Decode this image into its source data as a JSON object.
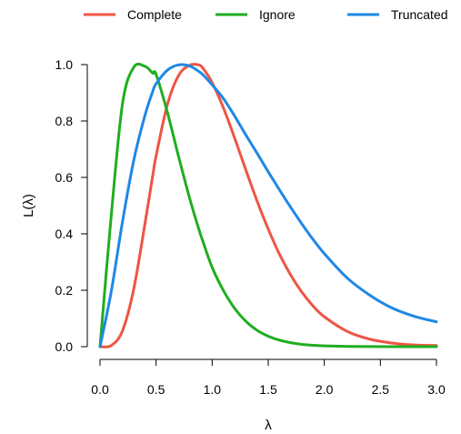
{
  "chart_data": {
    "type": "line",
    "xlabel": "λ",
    "ylabel": "L(λ)",
    "xlim": [
      0,
      3
    ],
    "ylim": [
      0,
      1
    ],
    "x_ticks": [
      "0.0",
      "0.5",
      "1.0",
      "1.5",
      "2.0",
      "2.5",
      "3.0"
    ],
    "y_ticks": [
      "0.0",
      "0.2",
      "0.4",
      "0.6",
      "0.8",
      "1.0"
    ],
    "grid": false,
    "legend_position": "top",
    "x": [
      0.0,
      0.1,
      0.2,
      0.3,
      0.4,
      0.47,
      0.5,
      0.6,
      0.7,
      0.8,
      0.88,
      0.92,
      1.0,
      1.1,
      1.2,
      1.3,
      1.4,
      1.5,
      1.6,
      1.7,
      1.8,
      1.9,
      2.0,
      2.2,
      2.4,
      2.6,
      2.8,
      3.0
    ],
    "series": [
      {
        "name": "Complete",
        "color": "#ee5544",
        "values": [
          0.0,
          0.004,
          0.056,
          0.203,
          0.434,
          0.606,
          0.676,
          0.857,
          0.961,
          0.998,
          0.999,
          0.986,
          0.936,
          0.847,
          0.74,
          0.627,
          0.517,
          0.417,
          0.328,
          0.254,
          0.193,
          0.144,
          0.106,
          0.055,
          0.027,
          0.013,
          0.006,
          0.004
        ]
      },
      {
        "name": "Ignore",
        "color": "#1fae1f",
        "values": [
          0.0,
          0.464,
          0.86,
          0.99,
          0.994,
          0.97,
          0.965,
          0.832,
          0.675,
          0.525,
          0.418,
          0.37,
          0.281,
          0.199,
          0.136,
          0.09,
          0.058,
          0.037,
          0.023,
          0.014,
          0.008,
          0.005,
          0.003,
          0.001,
          0.0004,
          0.0001,
          0.0,
          0.0
        ]
      },
      {
        "name": "Truncated",
        "color": "#1f88e5",
        "values": [
          0.0,
          0.195,
          0.442,
          0.659,
          0.819,
          0.905,
          0.932,
          0.98,
          0.999,
          0.995,
          0.976,
          0.963,
          0.928,
          0.88,
          0.818,
          0.751,
          0.686,
          0.62,
          0.556,
          0.494,
          0.435,
          0.38,
          0.33,
          0.245,
          0.184,
          0.138,
          0.108,
          0.088
        ]
      }
    ]
  }
}
